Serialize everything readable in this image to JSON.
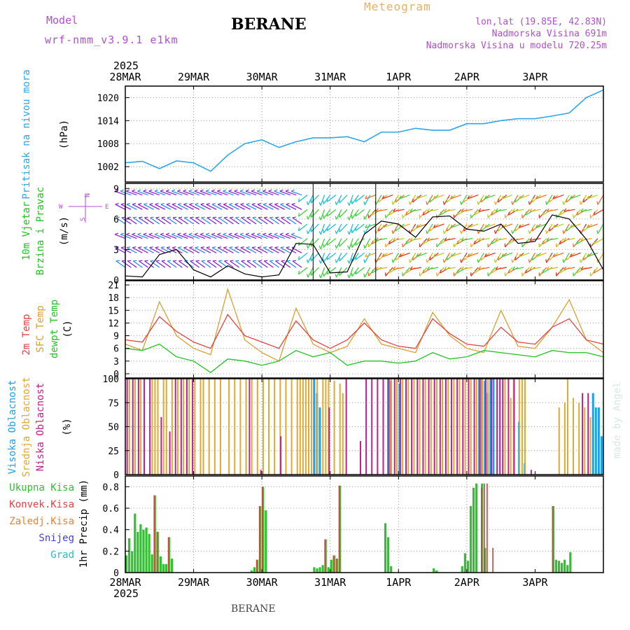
{
  "header": {
    "model_label": "Model",
    "model_id": "wrf-nmm_v3.9.1 e1km",
    "station": "BERANE",
    "product": "Meteogram",
    "coords": "lon,lat (19.85E, 42.83N)",
    "elevation": "Nadmorska Visina 691m",
    "model_elevation": "Nadmorska Visina u modelu 720.25m"
  },
  "footer": {
    "station": "BERANE",
    "credit": "made by Angel"
  },
  "time_axis": {
    "year": "2025",
    "days": [
      "28MAR",
      "29MAR",
      "30MAR",
      "31MAR",
      "1APR",
      "2APR",
      "3APR"
    ]
  },
  "colors": {
    "pressure": "#2aa8e8",
    "wind_speed": "#000000",
    "temp_2m": "#e84040",
    "temp_sfc": "#d8a030",
    "dewpoint": "#22c422",
    "cloud_high": "#1ea0e6",
    "cloud_mid": "#e0a830",
    "cloud_low": "#c0208a",
    "precip_total": "#30c030",
    "precip_conv": "#d04040",
    "purple": "#b04fd0"
  },
  "panels": {
    "pressure": {
      "label_line1": "Pritisak na nivou mora",
      "unit": "(hPa)",
      "ticks": [
        "1002",
        "1008",
        "1014",
        "1020"
      ]
    },
    "wind": {
      "label_line1": "10m Vjetar",
      "label_line2": "Brzina i Pravac",
      "unit": "(m/s)",
      "ticks": [
        "0",
        "3",
        "6",
        "9"
      ],
      "compass_n": "N",
      "compass_w": "W",
      "compass_e": "E",
      "compass_s": "S"
    },
    "temp": {
      "label_line1": "2m Temp",
      "label_line2": "SFC Temp",
      "label_line3": "dewpt Temp",
      "unit": "(C)",
      "ticks": [
        "0",
        "3",
        "6",
        "9",
        "12",
        "15",
        "18",
        "21"
      ]
    },
    "cloud": {
      "label_line1": "Visoka Oblacnost",
      "label_line2": "Srednja Oblacnost",
      "label_line3": "Niska Oblacnost",
      "unit": "(%)",
      "ticks": [
        "0",
        "25",
        "50",
        "75",
        "100"
      ]
    },
    "precip": {
      "legend": [
        "Ukupna Kisa",
        "Konvek.Kisa",
        "Zaledj.Kisa",
        "Snijeg",
        "Grad"
      ],
      "unit": "1hr Precip (mm)",
      "ticks": [
        "0",
        "0.2",
        "0.4",
        "0.6",
        "0.8"
      ]
    }
  },
  "chart_data": [
    {
      "type": "line",
      "name": "pressure",
      "ylim": [
        998,
        1023
      ],
      "x": [
        0,
        6,
        12,
        18,
        24,
        30,
        36,
        42,
        48,
        54,
        60,
        66,
        72,
        78,
        84,
        90,
        96,
        102,
        108,
        114,
        120,
        126,
        132,
        138,
        144,
        150,
        156,
        162,
        168
      ],
      "values": [
        1003,
        1003.4,
        1001.5,
        1003.5,
        1003,
        1000.8,
        1005,
        1008,
        1009,
        1007,
        1008.5,
        1009.5,
        1009.5,
        1009.8,
        1008.5,
        1011,
        1011,
        1012,
        1011.5,
        1011.5,
        1013.2,
        1013.2,
        1014,
        1014.5,
        1014.5,
        1015.2,
        1016,
        1020,
        1022
      ]
    },
    {
      "type": "line",
      "name": "wind_speed",
      "ylim": [
        0,
        9.5
      ],
      "x": [
        0,
        6,
        12,
        18,
        24,
        30,
        36,
        42,
        48,
        54,
        60,
        66,
        72,
        78,
        84,
        90,
        96,
        102,
        108,
        114,
        120,
        126,
        132,
        138,
        144,
        150,
        156,
        162,
        168
      ],
      "values": [
        0.4,
        0.3,
        2.5,
        3.0,
        1.0,
        0.3,
        1.4,
        0.6,
        0.3,
        0.5,
        3.6,
        3.5,
        0.7,
        0.8,
        4.5,
        5.8,
        5.5,
        4.2,
        6.2,
        6.3,
        5.0,
        4.8,
        5.5,
        3.6,
        3.8,
        6.4,
        6.0,
        4.0,
        1.0
      ]
    },
    {
      "type": "line",
      "name": "temp_2m",
      "ylim": [
        -1,
        22
      ],
      "x": [
        0,
        6,
        12,
        18,
        24,
        30,
        36,
        42,
        48,
        54,
        60,
        66,
        72,
        78,
        84,
        90,
        96,
        102,
        108,
        114,
        120,
        126,
        132,
        138,
        144,
        150,
        156,
        162,
        168
      ],
      "values": [
        8,
        7.5,
        13.5,
        10,
        7.5,
        6,
        14,
        9,
        7.5,
        6,
        12.5,
        8,
        6,
        8,
        12,
        8,
        6.5,
        6,
        13,
        9.5,
        7,
        6.5,
        11,
        7.5,
        7,
        11,
        13,
        8,
        7
      ]
    },
    {
      "type": "line",
      "name": "temp_sfc",
      "ylim": [
        -1,
        22
      ],
      "x": [
        0,
        6,
        12,
        18,
        24,
        30,
        36,
        42,
        48,
        54,
        60,
        66,
        72,
        78,
        84,
        90,
        96,
        102,
        108,
        114,
        120,
        126,
        132,
        138,
        144,
        150,
        156,
        162,
        168
      ],
      "values": [
        7,
        5.5,
        17,
        9,
        6,
        4.5,
        20,
        8,
        5,
        3,
        15.5,
        7,
        5,
        6.5,
        13,
        7,
        6,
        5,
        14.5,
        9,
        6,
        5,
        15,
        6.5,
        6,
        11,
        17.5,
        8,
        5
      ]
    },
    {
      "type": "line",
      "name": "dewpoint",
      "ylim": [
        -1,
        22
      ],
      "x": [
        0,
        6,
        12,
        18,
        24,
        30,
        36,
        42,
        48,
        54,
        60,
        66,
        72,
        78,
        84,
        90,
        96,
        102,
        108,
        114,
        120,
        126,
        132,
        138,
        144,
        150,
        156,
        162,
        168
      ],
      "values": [
        6,
        5.5,
        7,
        4,
        3,
        0.3,
        3.5,
        3,
        2,
        3,
        5.5,
        4,
        5,
        2,
        3,
        3,
        2.5,
        3,
        5,
        3.5,
        4,
        5.5,
        5,
        4.5,
        4,
        5.5,
        5,
        5,
        4
      ]
    },
    {
      "type": "bar",
      "name": "cloud_cover",
      "ylim": [
        0,
        100
      ],
      "series": [
        {
          "name": "Visoka Oblacnost",
          "x": [
            66,
            67,
            68,
            92,
            93,
            96,
            124,
            125,
            126,
            127,
            128,
            129,
            138,
            140,
            141,
            164,
            165,
            166,
            167
          ],
          "values": [
            100,
            85,
            70,
            100,
            98,
            95,
            100,
            100,
            98,
            85,
            100,
            100,
            55,
            12,
            0,
            85,
            70,
            70,
            40
          ]
        },
        {
          "name": "Srednja Oblacnost",
          "x": [
            1,
            3,
            5,
            9,
            10,
            11,
            13,
            14,
            16,
            18,
            20,
            22,
            24,
            26,
            27,
            29,
            31,
            33,
            36,
            38,
            40,
            42,
            44,
            46,
            48,
            50,
            52,
            54,
            56,
            58,
            60,
            61,
            62,
            63,
            64,
            65,
            67,
            69,
            70,
            71,
            73,
            75,
            76,
            93,
            95,
            97,
            99,
            101,
            103,
            105,
            107,
            109,
            111,
            113,
            115,
            117,
            119,
            121,
            123,
            125,
            127,
            133,
            135,
            136,
            138,
            139,
            140,
            152,
            154,
            155,
            157,
            159,
            161,
            163
          ],
          "values": [
            100,
            100,
            100,
            100,
            100,
            100,
            100,
            100,
            100,
            100,
            100,
            100,
            100,
            100,
            100,
            100,
            100,
            100,
            100,
            100,
            100,
            100,
            100,
            100,
            100,
            100,
            100,
            100,
            100,
            100,
            100,
            100,
            100,
            100,
            100,
            100,
            100,
            100,
            100,
            100,
            98,
            95,
            85,
            100,
            100,
            100,
            100,
            100,
            100,
            100,
            100,
            100,
            100,
            100,
            100,
            100,
            100,
            100,
            100,
            100,
            100,
            100,
            80,
            100,
            100,
            100,
            100,
            70,
            75,
            100,
            80,
            75,
            70,
            60
          ]
        },
        {
          "name": "Niska Oblacnost",
          "x": [
            0,
            2,
            4,
            6,
            8,
            12,
            15,
            17,
            19,
            21,
            23,
            43,
            47,
            54,
            71,
            77,
            82,
            84,
            86,
            88,
            90,
            92,
            94,
            96,
            98,
            100,
            102,
            104,
            106,
            108,
            110,
            112,
            114,
            116,
            118,
            120,
            122,
            124,
            126,
            128,
            130,
            131,
            132,
            134,
            136,
            142,
            160,
            162
          ],
          "values": [
            100,
            100,
            100,
            100,
            100,
            60,
            45,
            100,
            100,
            100,
            100,
            100,
            5,
            40,
            70,
            100,
            35,
            100,
            100,
            100,
            100,
            100,
            100,
            100,
            100,
            100,
            100,
            100,
            100,
            100,
            100,
            100,
            100,
            100,
            100,
            100,
            100,
            100,
            100,
            100,
            100,
            100,
            100,
            100,
            100,
            5,
            85,
            85
          ]
        }
      ]
    },
    {
      "type": "bar",
      "name": "precip",
      "ylim": [
        0,
        0.9
      ],
      "series": [
        {
          "name": "Ukupna Kisa",
          "x": [
            0,
            1,
            2,
            3,
            4,
            5,
            6,
            7,
            8,
            9,
            10,
            11,
            12,
            13,
            14,
            15,
            16,
            17,
            18,
            19,
            20,
            44,
            45,
            46,
            47,
            48,
            49,
            66,
            67,
            68,
            69,
            70,
            71,
            72,
            73,
            74,
            75,
            76,
            91,
            92,
            93,
            94,
            95,
            108,
            109,
            118,
            119,
            120,
            121,
            122,
            123,
            125,
            126,
            127,
            128,
            129,
            150,
            151,
            152,
            153,
            154,
            155,
            156,
            157,
            158
          ],
          "values": [
            0.16,
            0.32,
            0.2,
            0.55,
            0.38,
            0.45,
            0.4,
            0.42,
            0.36,
            0.17,
            0.72,
            0.38,
            0.15,
            0.08,
            0.08,
            0.33,
            0.13,
            0.0,
            0.0,
            0.0,
            0.0,
            0.02,
            0.05,
            0.12,
            0.62,
            0.8,
            0.58,
            0.05,
            0.04,
            0.05,
            0.07,
            0.31,
            0.05,
            0.12,
            0.16,
            0.13,
            0.81,
            0.0,
            0.46,
            0.33,
            0.06,
            0.0,
            0.0,
            0.04,
            0.02,
            0.06,
            0.18,
            0.11,
            0.62,
            0.79,
            0.83,
            0.83,
            0.23,
            0.0,
            0.0,
            0.0,
            0.62,
            0.12,
            0.11,
            0.09,
            0.12,
            0.07,
            0.19,
            0.0,
            0.0
          ]
        },
        {
          "name": "Konvek.Kisa",
          "x": [
            10,
            11,
            15,
            46,
            47,
            48,
            70,
            73,
            74,
            75,
            125,
            126,
            127,
            129,
            150
          ],
          "values": [
            0.72,
            0.38,
            0.33,
            0.12,
            0.62,
            0.8,
            0.31,
            0.16,
            0.13,
            0.81,
            0.79,
            0.83,
            0.83,
            0.23,
            0.62
          ]
        }
      ]
    }
  ]
}
